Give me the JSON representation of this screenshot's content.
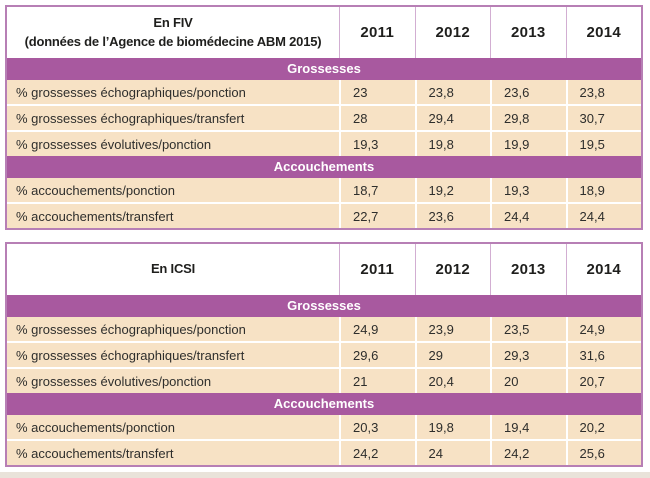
{
  "colors": {
    "band_bg": "#a8599f",
    "band_text": "#ffffff",
    "row_bg": "#f7e2c5",
    "outer_border": "#b77fb5",
    "header_divider": "#d2aed2",
    "cell_separator": "#ffffff",
    "header_text": "#1f1f1d",
    "cell_text": "#2e2e2c",
    "bottom_strip": "#e9e3da"
  },
  "tables": [
    {
      "name": "FIV",
      "title_line1": "En FIV",
      "title_line2": "(données de l’Agence de biomédecine ABM 2015)",
      "years": [
        "2011",
        "2012",
        "2013",
        "2014"
      ],
      "sections": [
        {
          "header": "Grossesses",
          "rows": [
            {
              "label": "% grossesses échographiques/ponction",
              "values": [
                "23",
                "23,8",
                "23,6",
                "23,8"
              ]
            },
            {
              "label": "% grossesses échographiques/transfert",
              "values": [
                "28",
                "29,4",
                "29,8",
                "30,7"
              ]
            },
            {
              "label": "% grossesses évolutives/ponction",
              "values": [
                "19,3",
                "19,8",
                "19,9",
                "19,5"
              ]
            }
          ]
        },
        {
          "header": "Accouchements",
          "rows": [
            {
              "label": "% accouchements/ponction",
              "values": [
                "18,7",
                "19,2",
                "19,3",
                "18,9"
              ]
            },
            {
              "label": "% accouchements/transfert",
              "values": [
                "22,7",
                "23,6",
                "24,4",
                "24,4"
              ]
            }
          ]
        }
      ]
    },
    {
      "name": "ICSI",
      "title_line1": "En ICSI",
      "title_line2": "",
      "years": [
        "2011",
        "2012",
        "2013",
        "2014"
      ],
      "sections": [
        {
          "header": "Grossesses",
          "rows": [
            {
              "label": "% grossesses échographiques/ponction",
              "values": [
                "24,9",
                "23,9",
                "23,5",
                "24,9"
              ]
            },
            {
              "label": "% grossesses échographiques/transfert",
              "values": [
                "29,6",
                "29",
                "29,3",
                "31,6"
              ]
            },
            {
              "label": "% grossesses évolutives/ponction",
              "values": [
                "21",
                "20,4",
                "20",
                "20,7"
              ]
            }
          ]
        },
        {
          "header": "Accouchements",
          "rows": [
            {
              "label": "% accouchements/ponction",
              "values": [
                "20,3",
                "19,8",
                "19,4",
                "20,2"
              ]
            },
            {
              "label": "% accouchements/transfert",
              "values": [
                "24,2",
                "24",
                "24,2",
                "25,6"
              ]
            }
          ]
        }
      ]
    }
  ]
}
